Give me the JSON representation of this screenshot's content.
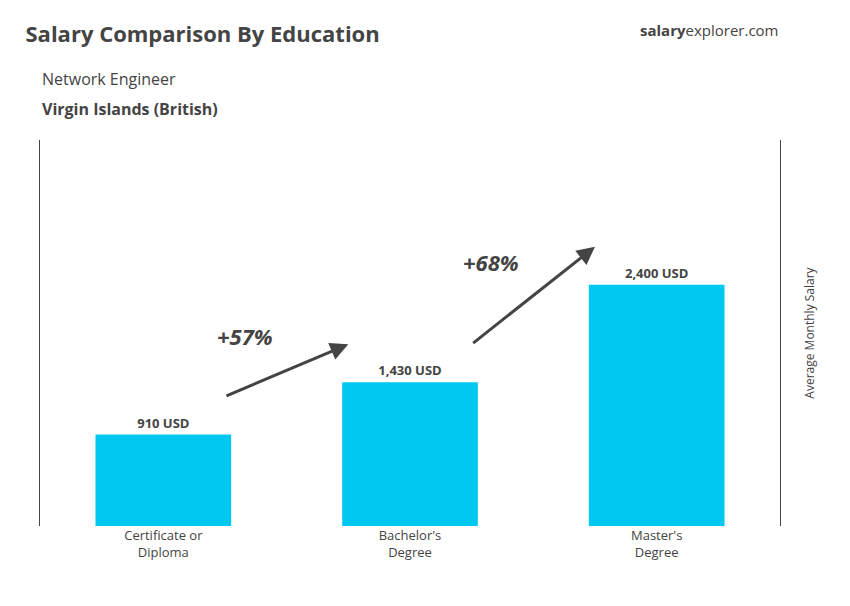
{
  "chart_data": {
    "type": "bar",
    "title": "Salary Comparison By Education",
    "subtitle": [
      "Network Engineer",
      "Virgin Islands (British)"
    ],
    "brand": [
      "salary",
      "explorer.com"
    ],
    "ylabel": "Average Monthly Salary",
    "categories": [
      "Certificate or\nDiploma",
      "Bachelor's\nDegree",
      "Master's\nDegree"
    ],
    "values": [
      910,
      1430,
      2400
    ],
    "value_labels": [
      "910 USD",
      "1,430 USD",
      "2,400 USD"
    ],
    "data_labels": true,
    "color": "#00c8f0",
    "annotations": [
      {
        "text": "+57%",
        "between": [
          "Certificate or\nDiploma",
          "Bachelor's\nDegree"
        ]
      },
      {
        "text": "+68%",
        "between": [
          "Bachelor's\nDegree",
          "Master's\nDegree"
        ]
      }
    ],
    "ylim": [
      0,
      3840
    ],
    "yticks": [],
    "tick_labels": "x",
    "grid": false
  }
}
